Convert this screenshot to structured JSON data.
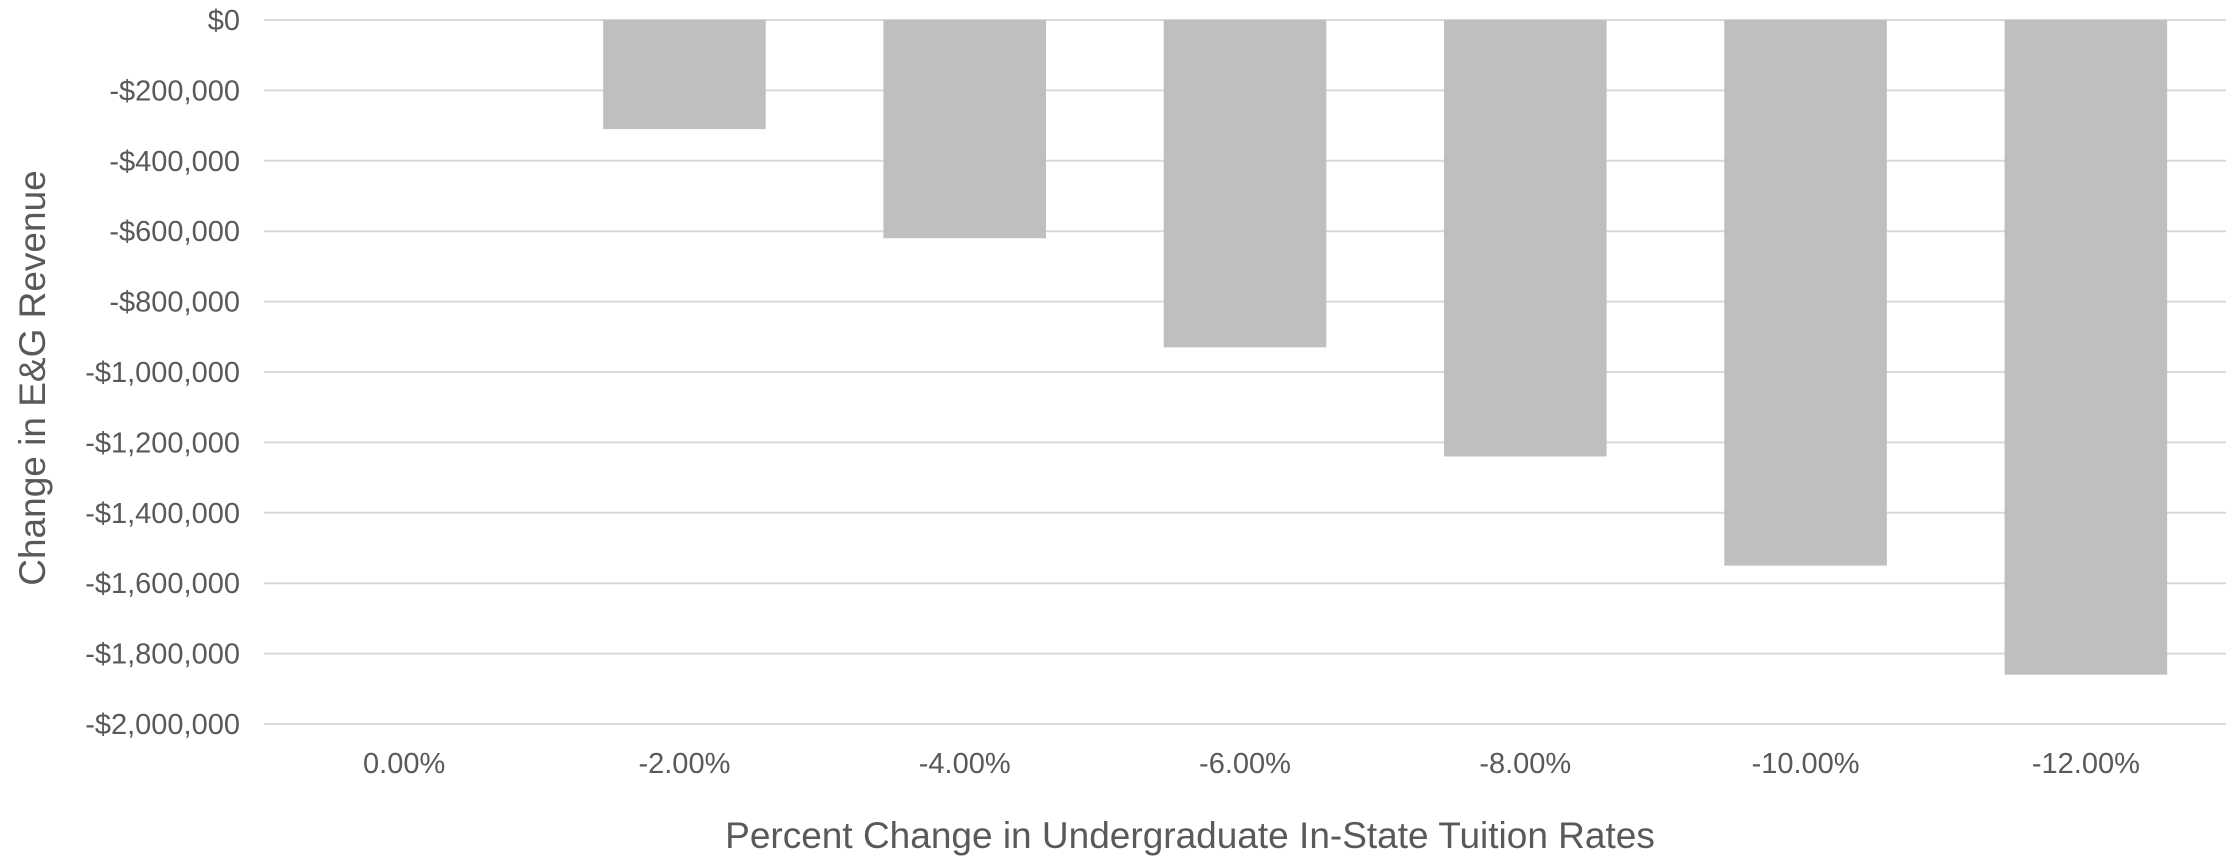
{
  "chart_data": {
    "type": "bar",
    "title": "",
    "xlabel": "Percent Change in Undergraduate In-State Tuition Rates",
    "ylabel": "Change in E&G Revenue",
    "categories": [
      "0.00%",
      "-2.00%",
      "-4.00%",
      "-6.00%",
      "-8.00%",
      "-10.00%",
      "-12.00%"
    ],
    "values": [
      0,
      -310000,
      -620000,
      -930000,
      -1240000,
      -1550000,
      -1860000
    ],
    "ylim": [
      -2000000,
      0
    ],
    "yticks": [
      0,
      -200000,
      -400000,
      -600000,
      -800000,
      -1000000,
      -1200000,
      -1400000,
      -1600000,
      -1800000,
      -2000000
    ],
    "ytick_labels": [
      "$0",
      "-$200,000",
      "-$400,000",
      "-$600,000",
      "-$800,000",
      "-$1,000,000",
      "-$1,200,000",
      "-$1,400,000",
      "-$1,600,000",
      "-$1,800,000",
      "-$2,000,000"
    ],
    "grid": true,
    "legend": "none",
    "colors": {
      "bar": "#bfbfbf",
      "grid": "#d9d9d9",
      "text": "#595959"
    }
  }
}
